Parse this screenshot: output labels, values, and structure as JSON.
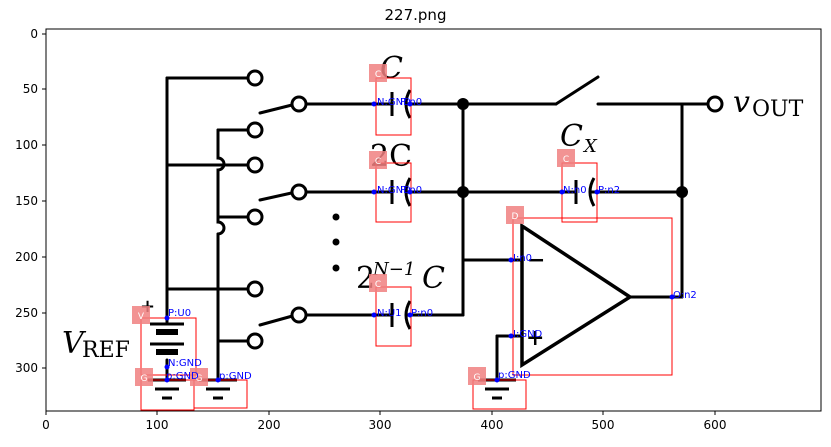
{
  "title": "227.png",
  "axes": {
    "x_ticks": [
      "0",
      "100",
      "200",
      "300",
      "400",
      "500",
      "600"
    ],
    "y_ticks": [
      "0",
      "50",
      "100",
      "150",
      "200",
      "250",
      "300"
    ]
  },
  "circuit_text": {
    "cap_c": "C",
    "cap_2c": "2C",
    "cap_big_base": "2",
    "cap_big_exp": "N−1",
    "cap_big_c": "C",
    "cap_cx": "C",
    "cap_cx_sub": "X",
    "vout": "v",
    "vout_sub": "OUT",
    "vref": "V",
    "vref_sub": "REF",
    "opamp_minus": "−",
    "opamp_plus": "+",
    "vref_plus": "+"
  },
  "components": [
    {
      "tag": "C",
      "pins": [
        "N:GND",
        "P:n0"
      ]
    },
    {
      "tag": "C",
      "pins": [
        "N:GND",
        "P:n0"
      ]
    },
    {
      "tag": "C",
      "pins": [
        "N:n0",
        "P:n2"
      ]
    },
    {
      "tag": "D",
      "pins": [
        "I:n0",
        "I:GND",
        "O:n2"
      ]
    },
    {
      "tag": "C",
      "pins": [
        "N:U1",
        "P:n0"
      ]
    },
    {
      "tag": "V",
      "pins": [
        "P:U0",
        "N:GND"
      ]
    },
    {
      "tag": "G",
      "pins": [
        "p:GND"
      ]
    },
    {
      "tag": "G",
      "pins": [
        "p:GND"
      ]
    },
    {
      "tag": "G",
      "pins": [
        "p:GND"
      ]
    }
  ],
  "colors": {
    "box": "#ff0000",
    "tag_fill": "#f08080",
    "pin": "#0000ff",
    "wire": "#000000"
  }
}
